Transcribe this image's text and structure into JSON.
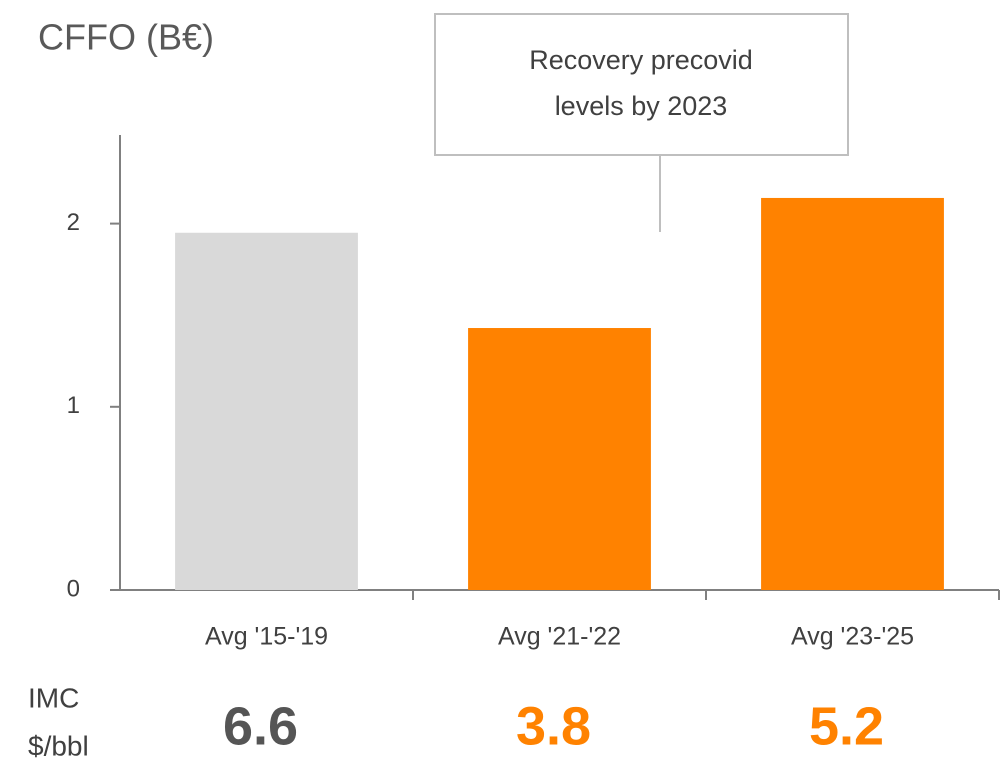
{
  "chart_data": {
    "type": "bar",
    "title": "CFFO (B€)",
    "categories": [
      "Avg '15-'19",
      "Avg '21-'22",
      "Avg '23-'25"
    ],
    "values": [
      1.95,
      1.43,
      2.14
    ],
    "colors": [
      "#d9d9d9",
      "#ff8200",
      "#ff8200"
    ],
    "ylim": [
      0,
      2.5
    ],
    "yticks": [
      0,
      1,
      2
    ],
    "annotation": [
      "Recovery precovid",
      "levels by 2023"
    ],
    "imc": {
      "label": [
        "IMC",
        "$/bbl"
      ],
      "values": [
        6.6,
        3.8,
        5.2
      ],
      "colors": [
        "#555555",
        "#ff8200",
        "#ff8200"
      ]
    }
  }
}
